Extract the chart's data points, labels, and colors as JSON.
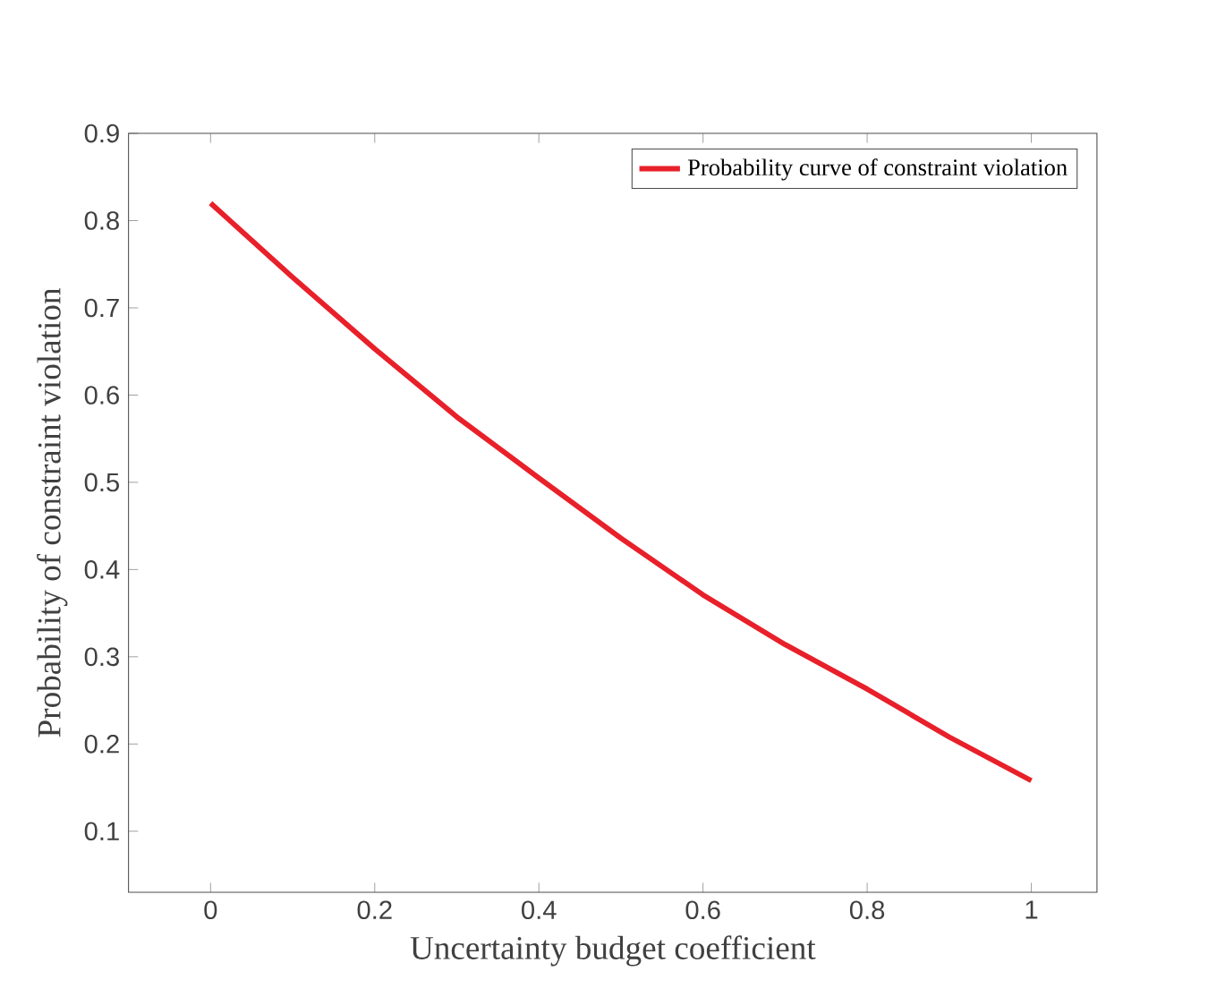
{
  "chart_data": {
    "type": "line",
    "xlabel": "Uncertainty budget coefficient",
    "ylabel": "Probability of constraint violation",
    "x": [
      0,
      0.1,
      0.2,
      0.3,
      0.4,
      0.5,
      0.6,
      0.7,
      0.8,
      0.9,
      1
    ],
    "series": [
      {
        "name": "Probability curve of constraint violation",
        "color": "#e8202a",
        "values": [
          0.82,
          0.735,
          0.653,
          0.575,
          0.505,
          0.436,
          0.371,
          0.314,
          0.263,
          0.208,
          0.158
        ]
      }
    ],
    "xlim": [
      -0.1,
      1.08
    ],
    "ylim": [
      0.03,
      0.9
    ],
    "xticks": [
      0,
      0.2,
      0.4,
      0.6,
      0.8,
      1
    ],
    "yticks": [
      0.1,
      0.2,
      0.3,
      0.4,
      0.5,
      0.6,
      0.7,
      0.8,
      0.9
    ],
    "legend": "top right",
    "grid": false,
    "line_style": "solid",
    "marker": "none"
  }
}
